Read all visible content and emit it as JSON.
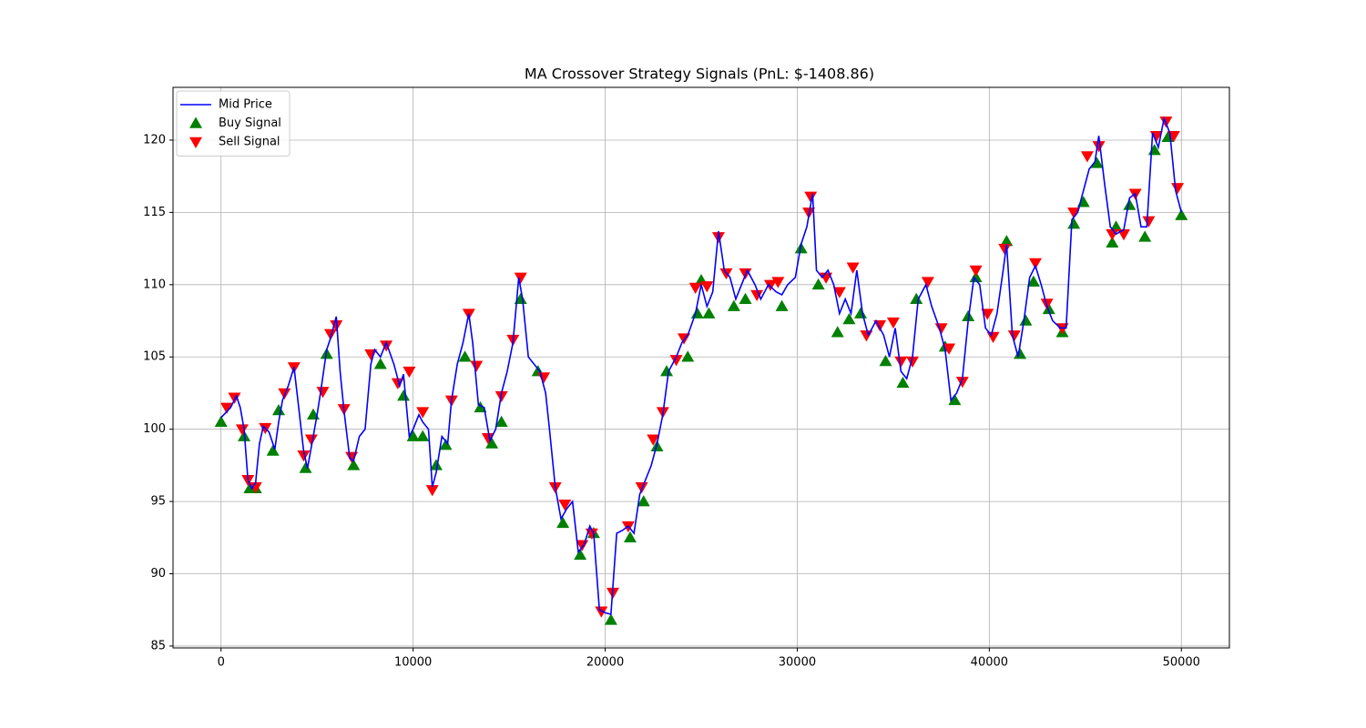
{
  "chart_data": {
    "type": "line",
    "title": "MA Crossover Strategy Signals (PnL: $-1408.86)",
    "xlim": [
      -2500,
      52500
    ],
    "ylim": [
      84.87,
      123.65
    ],
    "xticks": [
      0,
      10000,
      20000,
      30000,
      40000,
      50000
    ],
    "yticks": [
      85,
      90,
      95,
      100,
      105,
      110,
      115,
      120
    ],
    "grid": true,
    "legend": "upper left",
    "series": [
      {
        "name": "Mid Price",
        "kind": "line",
        "color": "#0000ff",
        "x": [
          0,
          500,
          800,
          1000,
          1200,
          1400,
          1600,
          1800,
          2000,
          2200,
          2500,
          2800,
          3000,
          3200,
          3500,
          3800,
          4000,
          4300,
          4500,
          4800,
          5000,
          5200,
          5500,
          5700,
          6000,
          6200,
          6400,
          6700,
          6900,
          7200,
          7500,
          7800,
          8000,
          8300,
          8600,
          9000,
          9300,
          9500,
          9800,
          10000,
          10300,
          10500,
          10800,
          11000,
          11200,
          11500,
          11800,
          12000,
          12300,
          12600,
          12900,
          13100,
          13400,
          13700,
          14000,
          14300,
          14600,
          14900,
          15200,
          15500,
          15700,
          16000,
          16300,
          16600,
          16900,
          17100,
          17400,
          17700,
          18000,
          18300,
          18600,
          18900,
          19200,
          19400,
          19700,
          20000,
          20300,
          20600,
          20900,
          21200,
          21500,
          21800,
          22100,
          22400,
          22700,
          23000,
          23300,
          23700,
          24000,
          24300,
          24700,
          25000,
          25300,
          25600,
          25900,
          26200,
          26500,
          26800,
          27100,
          27400,
          27800,
          28100,
          28500,
          28900,
          29200,
          29500,
          29900,
          30200,
          30500,
          30800,
          31000,
          31300,
          31600,
          31900,
          32200,
          32500,
          32800,
          33100,
          33400,
          33700,
          34100,
          34500,
          34800,
          35100,
          35400,
          35700,
          36000,
          36300,
          36700,
          37000,
          37400,
          37700,
          38000,
          38300,
          38600,
          38900,
          39200,
          39500,
          39800,
          40100,
          40400,
          40700,
          40900,
          41200,
          41500,
          41800,
          42100,
          42400,
          42700,
          43000,
          43300,
          43700,
          44000,
          44300,
          44600,
          44900,
          45200,
          45500,
          45700,
          46000,
          46300,
          46600,
          47000,
          47300,
          47600,
          47900,
          48200,
          48500,
          48800,
          49100,
          49400,
          49700,
          50000
        ],
        "values": [
          100.8,
          101.5,
          102.3,
          101.5,
          100,
          96.5,
          95.9,
          96.3,
          99,
          100.2,
          99.8,
          98.6,
          100.5,
          102,
          103,
          104.3,
          102,
          98.5,
          97.3,
          99.5,
          101,
          102.7,
          105.5,
          106.3,
          107.8,
          104,
          101.3,
          98,
          97.8,
          99.5,
          100,
          104.5,
          105.5,
          105,
          106,
          104.5,
          103,
          103.8,
          99.5,
          100,
          101,
          100.5,
          100,
          96,
          97,
          99.5,
          99,
          102,
          104.5,
          106,
          108,
          106,
          101.7,
          101.5,
          99.2,
          100,
          102.5,
          104,
          106,
          110.5,
          109,
          105,
          104.5,
          104,
          102.5,
          100,
          96,
          93.8,
          94.5,
          95,
          91.5,
          92,
          93.3,
          92.8,
          87.5,
          87.3,
          87.2,
          92.8,
          93,
          93.3,
          92.8,
          95.5,
          96.5,
          97.5,
          99,
          101,
          104,
          105,
          106,
          106.5,
          108,
          110,
          108.5,
          109.5,
          113.7,
          111,
          110.5,
          109,
          110,
          111,
          110,
          109,
          110,
          109.5,
          109.3,
          110,
          110.5,
          112.8,
          114,
          116.3,
          111,
          110.5,
          111,
          110,
          108,
          109,
          108,
          111,
          108,
          106.5,
          107.5,
          106.5,
          105,
          107,
          104,
          103.5,
          105,
          109,
          110,
          108.5,
          107,
          105.5,
          102,
          102.5,
          103.5,
          107.5,
          110.5,
          110,
          107,
          106.5,
          108,
          110.8,
          112.8,
          106.5,
          105,
          107.5,
          110.5,
          111.3,
          110,
          108.5,
          107.5,
          107,
          107,
          114.5,
          115,
          116.5,
          118,
          118.5,
          120.3,
          117,
          114,
          113.5,
          113.8,
          116,
          116.3,
          114,
          114,
          120.5,
          119.5,
          121.5,
          120.5,
          116.5,
          115
        ]
      },
      {
        "name": "Buy Signal",
        "kind": "scatter",
        "marker": "triangle-up",
        "color": "#008000",
        "x": [
          0,
          1200,
          1500,
          1800,
          2700,
          3000,
          4400,
          4800,
          5500,
          6900,
          8300,
          9500,
          10000,
          10500,
          11200,
          11700,
          12700,
          13500,
          14100,
          14600,
          15600,
          16500,
          17800,
          18700,
          19400,
          20300,
          21300,
          22000,
          22700,
          23200,
          24300,
          24800,
          25000,
          25400,
          26700,
          27300,
          29200,
          30200,
          31100,
          32100,
          32700,
          33300,
          34600,
          35500,
          36200,
          37700,
          38200,
          38900,
          39300,
          40900,
          41600,
          41900,
          42300,
          43100,
          43800,
          44400,
          44900,
          45600,
          46400,
          46600,
          47300,
          48100,
          48600,
          49300,
          50000
        ],
        "values": [
          100.5,
          99.5,
          95.9,
          95.9,
          98.5,
          101.3,
          97.3,
          101,
          105.2,
          97.5,
          104.5,
          102.3,
          99.5,
          99.5,
          97.5,
          98.9,
          105,
          101.5,
          99,
          100.5,
          109,
          104,
          93.5,
          91.3,
          92.8,
          86.8,
          92.5,
          95,
          98.8,
          104,
          105,
          108,
          110.3,
          108,
          108.5,
          109,
          108.5,
          112.5,
          110,
          106.7,
          107.6,
          108,
          104.7,
          103.2,
          109,
          105.7,
          102,
          107.8,
          110.5,
          113,
          105.2,
          107.5,
          110.2,
          108.3,
          106.7,
          114.2,
          115.7,
          118.4,
          112.9,
          114,
          115.5,
          113.3,
          119.3,
          120.2,
          114.8
        ]
      },
      {
        "name": "Sell Signal",
        "kind": "scatter",
        "marker": "triangle-down",
        "color": "#ff0000",
        "x": [
          300,
          700,
          1100,
          1400,
          1800,
          2300,
          3300,
          3800,
          4300,
          4700,
          5300,
          5700,
          6000,
          6400,
          6800,
          7800,
          8600,
          9200,
          9800,
          10500,
          11000,
          12000,
          12900,
          13300,
          13900,
          14600,
          15200,
          15600,
          16800,
          17400,
          17900,
          18800,
          19300,
          19800,
          20400,
          21200,
          21900,
          22500,
          23000,
          23700,
          24100,
          24700,
          25300,
          25900,
          26300,
          27300,
          27900,
          28600,
          29000,
          30600,
          30700,
          31500,
          32200,
          32900,
          33600,
          34300,
          35000,
          35400,
          36000,
          36800,
          37500,
          37900,
          38600,
          39300,
          39900,
          40200,
          40800,
          41300,
          42400,
          43000,
          43800,
          44400,
          45100,
          45700,
          46400,
          47000,
          47600,
          48300,
          48700,
          49200,
          49600,
          49800
        ],
        "values": [
          101.5,
          102.2,
          100,
          96.5,
          96,
          100.1,
          102.5,
          104.3,
          98.2,
          99.3,
          102.6,
          106.6,
          107.2,
          101.4,
          98.1,
          105.2,
          105.8,
          103.2,
          104,
          101.2,
          95.8,
          102,
          108,
          104.4,
          99.4,
          102.3,
          106.2,
          110.5,
          103.6,
          96,
          94.8,
          92,
          92.8,
          87.4,
          88.7,
          93.3,
          96,
          99.3,
          101.2,
          104.8,
          106.3,
          109.8,
          109.9,
          113.3,
          110.8,
          110.8,
          109.3,
          110,
          110.2,
          115,
          116.1,
          110.5,
          109.5,
          111.2,
          106.5,
          107.2,
          107.4,
          104.7,
          104.7,
          110.2,
          107,
          105.6,
          103.3,
          111,
          108,
          106.4,
          112.5,
          106.5,
          111.5,
          108.7,
          107,
          115,
          118.9,
          119.6,
          113.5,
          113.5,
          116.3,
          114.4,
          120.3,
          121.3,
          120.3,
          116.7
        ]
      }
    ]
  }
}
